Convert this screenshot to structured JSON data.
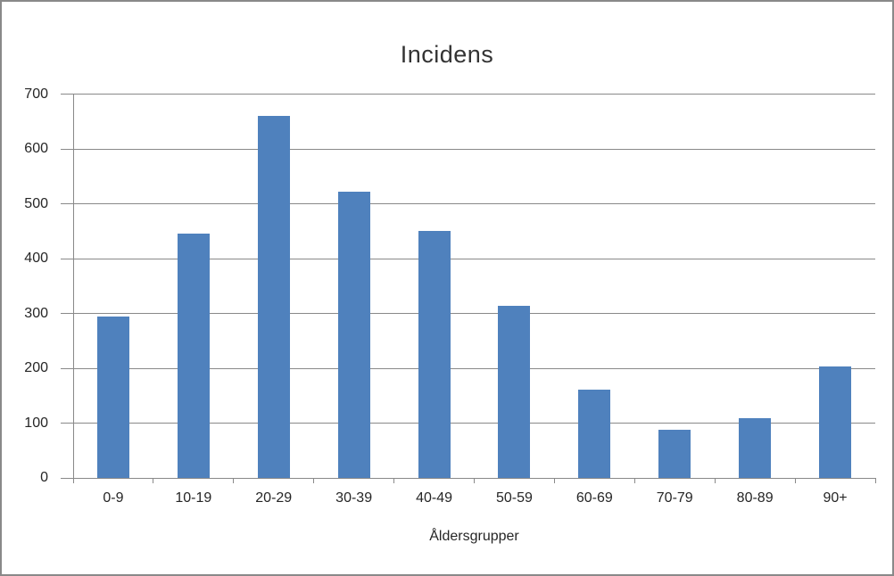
{
  "chart_data": {
    "type": "bar",
    "title": "Incidens",
    "xlabel": "Åldersgrupper",
    "ylabel": "",
    "categories": [
      "0-9",
      "10-19",
      "20-29",
      "30-39",
      "40-49",
      "50-59",
      "60-69",
      "70-79",
      "80-89",
      "90+"
    ],
    "values": [
      295,
      445,
      660,
      522,
      450,
      314,
      161,
      88,
      109,
      203
    ],
    "ylim": [
      0,
      700
    ],
    "y_ticks": [
      0,
      100,
      200,
      300,
      400,
      500,
      600,
      700
    ],
    "grid": "horizontal",
    "legend": "none",
    "colors": {
      "bar": "#4F81BD",
      "axis_and_grid": "#898989",
      "text": "#262626",
      "title_text": "#333333",
      "frame_border": "#898989",
      "background": "#FFFFFF"
    }
  }
}
